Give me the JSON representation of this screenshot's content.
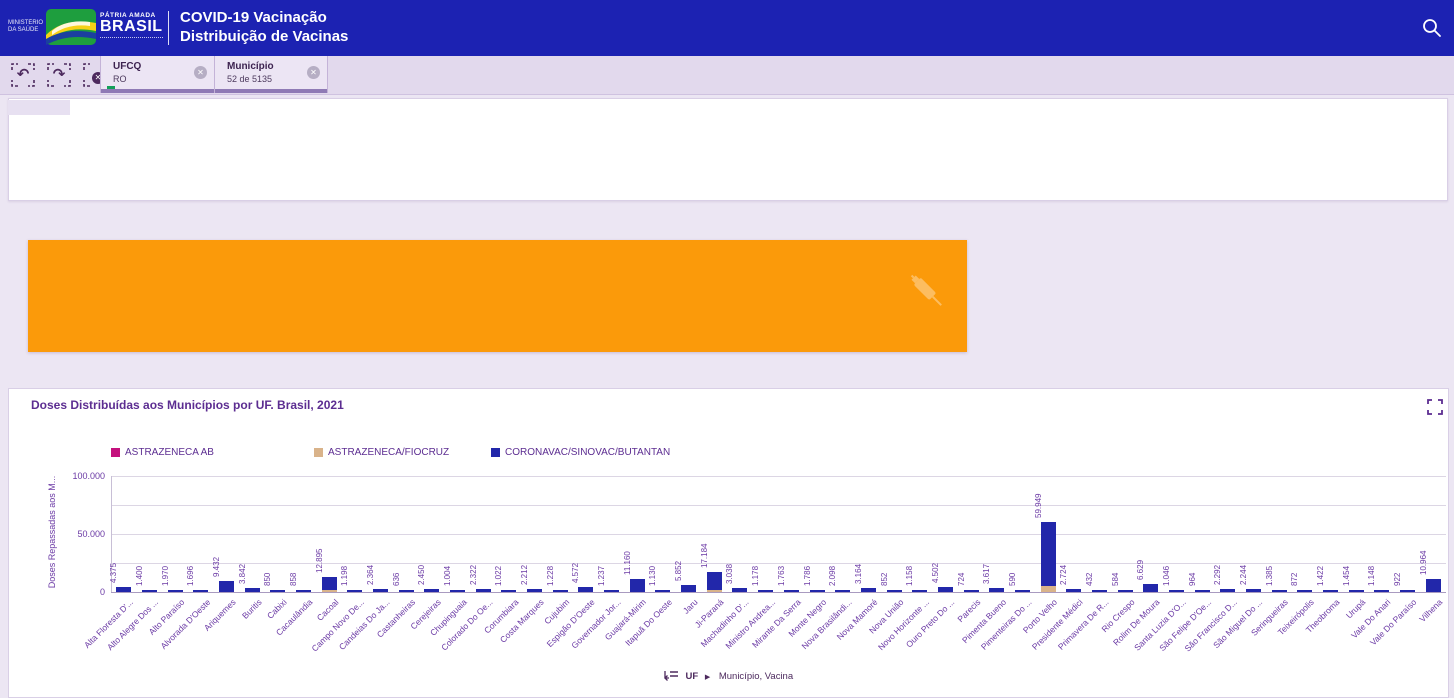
{
  "colors": {
    "header_bg": "#1c22b2",
    "orange_panel": "#fb9a0a",
    "astrazeneca_ab": "#c4117d",
    "astrazeneca_fiocruz": "#d9b38a",
    "coronavac": "#2227aa",
    "accent_purple": "#5c2d91"
  },
  "header": {
    "ministry": "MINISTÉRIO DA SAÚDE",
    "logo_patria": "PÁTRIA AMADA",
    "logo_brasil": "BRASIL",
    "title_line1": "COVID-19 Vacinação",
    "title_line2": "Distribuição de Vacinas",
    "search_icon": "search-magnifier"
  },
  "filterbar": {
    "icons": [
      {
        "name": "step-back-selection",
        "glyph": "↶"
      },
      {
        "name": "step-forward-selection",
        "glyph": "↷"
      },
      {
        "name": "clear-all-selections",
        "glyph": "✕"
      }
    ],
    "close_glyph": "✕",
    "chips": [
      {
        "field": "UFCQ",
        "value": "RO",
        "green_indicator": true
      },
      {
        "field": "Município",
        "value": "52 de 5135",
        "green_indicator": false
      }
    ]
  },
  "chart": {
    "title": "Doses Distribuídas aos Municípios por UF. Brasil, 2021",
    "expand_icon": "fullscreen-corners",
    "ylabel": "Doses Repassadas aos M...",
    "footer": {
      "drill_icon": "drill-hierarchy",
      "dimension": "UF",
      "arrow": "▶",
      "next_dims": "Município, Vacina"
    }
  },
  "chart_data": {
    "type": "bar",
    "stacked": true,
    "title": "Doses Distribuídas aos Municípios por UF. Brasil, 2021",
    "xlabel": "",
    "ylabel": "Doses Repassadas aos M...",
    "ylim": [
      0,
      100000
    ],
    "gridline_step": 25000,
    "grid": true,
    "legend_position": "top",
    "yticks": [
      {
        "value": 0,
        "label": "0"
      },
      {
        "value": 50000,
        "label": "50.000"
      },
      {
        "value": 100000,
        "label": "100.000"
      }
    ],
    "legend": [
      {
        "label": "ASTRAZENECA AB",
        "color": "#c4117d"
      },
      {
        "label": "ASTRAZENECA/FIOCRUZ",
        "color": "#d9b38a"
      },
      {
        "label": "CORONAVAC/SINOVAC/BUTANTAN",
        "color": "#2227aa"
      }
    ],
    "categories": [
      "Alta Floresta D'...",
      "Alto Alegre Dos ...",
      "Alto Paraíso",
      "Alvorada D'Oeste",
      "Ariquemes",
      "Buritis",
      "Cabixi",
      "Cacaulândia",
      "Cacoal",
      "Campo Novo De...",
      "Candeias Do Ja...",
      "Castanheiras",
      "Cerejeiras",
      "Chupinguaia",
      "Colorado Do Oe...",
      "Corumbiara",
      "Costa Marques",
      "Cujubim",
      "Espigão D'Oeste",
      "Governador Jor...",
      "Guajará-Mirim",
      "Itapuã Do Oeste",
      "Jaru",
      "Ji-Paraná",
      "Machadinho D'...",
      "Ministro Andrea...",
      "Mirante Da Serra",
      "Monte Negro",
      "Nova Brasilândi...",
      "Nova Mamoré",
      "Nova União",
      "Novo Horizonte ...",
      "Ouro Preto Do ...",
      "Parecis",
      "Pimenta Bueno",
      "Pimenteiras Do ...",
      "Porto Velho",
      "Presidente Médici",
      "Primavera De R...",
      "Rio Crespo",
      "Rolim De Moura",
      "Santa Luzia D'O...",
      "São Felipe D'Oe...",
      "São Francisco D...",
      "São Miguel Do ...",
      "Seringueiras",
      "Teixeirópolis",
      "Theobroma",
      "Urupá",
      "Vale Do Anari",
      "Vale Do Paraíso",
      "Vilhena"
    ],
    "values": [
      4375,
      1400,
      1970,
      1696,
      9432,
      3842,
      850,
      858,
      12895,
      1198,
      2364,
      636,
      2450,
      1004,
      2322,
      1022,
      2212,
      1228,
      4572,
      1237,
      11160,
      1130,
      5852,
      17184,
      3038,
      1178,
      1763,
      1786,
      2098,
      3164,
      852,
      1158,
      4502,
      724,
      3617,
      590,
      59949,
      2724,
      432,
      584,
      6629,
      1046,
      964,
      2292,
      2244,
      1385,
      872,
      1422,
      1454,
      1148,
      922,
      10964
    ],
    "bar_labels": [
      "4.375",
      "1.400",
      "1.970",
      "1.696",
      "9.432",
      "3.842",
      "850",
      "858",
      "12.895",
      "1.198",
      "2.364",
      "636",
      "2.450",
      "1.004",
      "2.322",
      "1.022",
      "2.212",
      "1.228",
      "4.572",
      "1.237",
      "11.160",
      "1.130",
      "5.852",
      "17.184",
      "3.038",
      "1.178",
      "1.763",
      "1.786",
      "2.098",
      "3.164",
      "852",
      "1.158",
      "4.502",
      "724",
      "3.617",
      "590",
      "59.949",
      "2.724",
      "432",
      "584",
      "6.629",
      "1.046",
      "964",
      "2.292",
      "2.244",
      "1.385",
      "872",
      "1.422",
      "1.454",
      "1.148",
      "922",
      "10.964"
    ],
    "az_fiocruz_visible_estimate": {
      "Cacoal": 1500,
      "Ji-Paraná": 1500,
      "Porto Velho": 5000
    }
  }
}
